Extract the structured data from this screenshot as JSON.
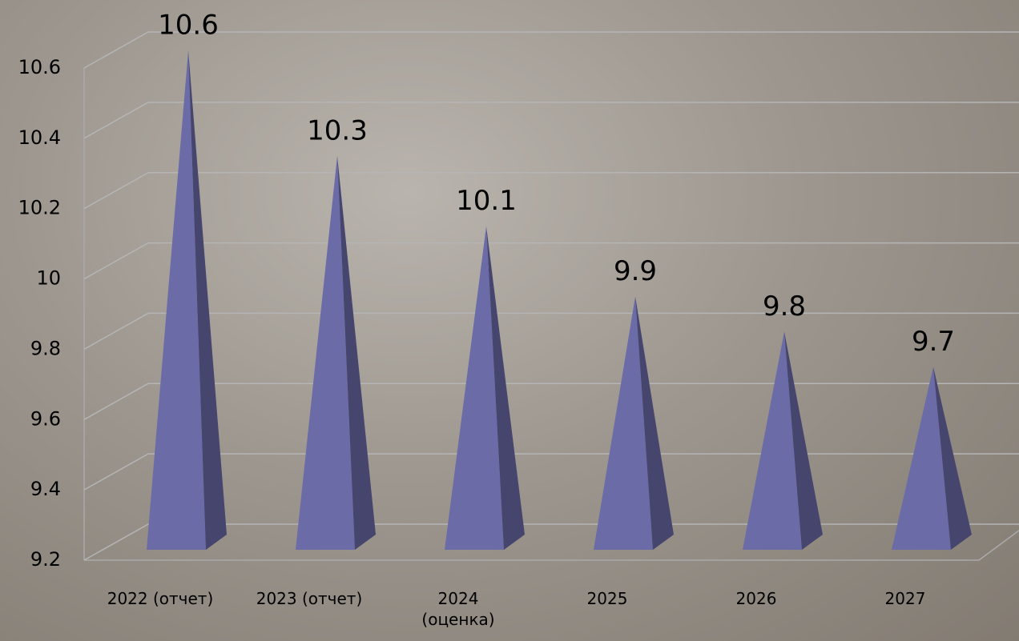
{
  "chart_data": {
    "type": "pyramid",
    "categories": [
      "2022 (отчет)",
      "2023 (отчет)",
      "2024\n(оценка)",
      "2025",
      "2026",
      "2027"
    ],
    "values": [
      10.6,
      10.3,
      10.1,
      9.9,
      9.8,
      9.7
    ],
    "color": "#6b6ba8",
    "ylim": [
      9.2,
      10.6
    ],
    "yticks": [
      9.2,
      9.4,
      9.6,
      9.8,
      10,
      10.2,
      10.4,
      10.6
    ],
    "grid": true
  }
}
